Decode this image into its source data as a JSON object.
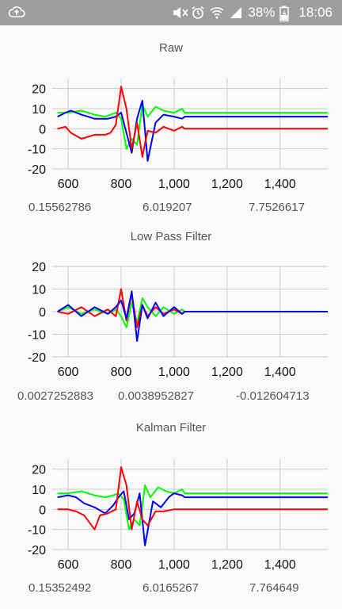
{
  "status_bar": {
    "left_icon": "cloud-upload-icon",
    "icons": [
      "mute-icon",
      "alarm-icon",
      "wifi-icon",
      "signal-icon"
    ],
    "battery_text": "38%",
    "battery_icon": "battery-charging-icon",
    "time": "18:06"
  },
  "colors": {
    "x_series": "#ff0000",
    "y_series": "#00ff00",
    "z_series": "#0000ff",
    "grid": "#cccccc",
    "background": "#fafafa"
  },
  "charts": [
    {
      "title": "Raw",
      "readouts": [
        "0.15562786",
        "6.019207",
        "7.7526617"
      ]
    },
    {
      "title": "Low Pass Filter",
      "readouts": [
        "0.0027252883",
        "0.0038952827",
        "-0.012604713"
      ]
    },
    {
      "title": "Kalman Filter",
      "readouts": [
        "0.15352492",
        "6.0165267",
        "7.764649"
      ]
    }
  ],
  "chart_data": [
    {
      "type": "line",
      "title": "Raw",
      "xlim": [
        540,
        1580
      ],
      "ylim": [
        -20,
        25
      ],
      "x_ticks": [
        "600",
        "800",
        "1,000",
        "1,200",
        "1,400"
      ],
      "y_ticks": [
        "20",
        "10",
        "0",
        "-10",
        "-20"
      ],
      "grid": true,
      "series": [
        {
          "color": "#00ff00",
          "x": [
            560,
            600,
            650,
            700,
            740,
            760,
            780,
            800,
            820,
            840,
            860,
            880,
            900,
            930,
            960,
            1000,
            1030,
            1040,
            1580
          ],
          "y": [
            8,
            8,
            9,
            7,
            6,
            7,
            8,
            5,
            -10,
            -5,
            -8,
            12,
            6,
            11,
            9,
            8,
            10,
            8,
            8
          ]
        },
        {
          "color": "#0000ff",
          "x": [
            560,
            590,
            610,
            650,
            700,
            750,
            780,
            800,
            820,
            840,
            860,
            880,
            900,
            930,
            960,
            1000,
            1030,
            1040,
            1580
          ],
          "y": [
            6,
            8,
            9,
            7,
            5,
            5,
            6,
            8,
            -2,
            -12,
            5,
            14,
            -16,
            3,
            7,
            6,
            5,
            6,
            6
          ]
        },
        {
          "color": "#ff0000",
          "x": [
            560,
            590,
            610,
            650,
            700,
            740,
            760,
            780,
            800,
            820,
            840,
            860,
            880,
            900,
            930,
            960,
            1000,
            1030,
            1040,
            1580
          ],
          "y": [
            0,
            1,
            -2,
            -5,
            -3,
            -3,
            -2,
            2,
            21,
            10,
            -10,
            3,
            -14,
            -1,
            -2,
            1,
            -1,
            1,
            0,
            0
          ]
        }
      ]
    },
    {
      "type": "line",
      "title": "Low Pass Filter",
      "xlim": [
        540,
        1580
      ],
      "ylim": [
        -20,
        20
      ],
      "x_ticks": [
        "600",
        "800",
        "1,000",
        "1,200",
        "1,400"
      ],
      "y_ticks": [
        "20",
        "10",
        "0",
        "-10",
        "-20"
      ],
      "grid": true,
      "series": [
        {
          "color": "#00ff00",
          "x": [
            560,
            600,
            650,
            700,
            750,
            780,
            800,
            820,
            840,
            860,
            880,
            900,
            930,
            960,
            1000,
            1030,
            1040,
            1580
          ],
          "y": [
            0,
            2,
            -1,
            1,
            -1,
            1,
            -2,
            -7,
            4,
            -5,
            6,
            2,
            -2,
            2,
            -1,
            1,
            0,
            0
          ]
        },
        {
          "color": "#ff0000",
          "x": [
            560,
            600,
            650,
            700,
            750,
            780,
            800,
            820,
            840,
            860,
            880,
            900,
            930,
            960,
            1000,
            1030,
            1040,
            1580
          ],
          "y": [
            0,
            -1,
            2,
            -2,
            1,
            -2,
            10,
            -4,
            8,
            -7,
            3,
            -2,
            2,
            -1,
            1,
            -1,
            0,
            0
          ]
        },
        {
          "color": "#0000ff",
          "x": [
            560,
            600,
            650,
            700,
            750,
            780,
            800,
            820,
            840,
            860,
            880,
            900,
            930,
            960,
            1000,
            1030,
            1040,
            1580
          ],
          "y": [
            0,
            3,
            -2,
            2,
            -1,
            2,
            5,
            -3,
            9,
            -13,
            3,
            -3,
            4,
            -2,
            2,
            -1,
            0,
            0
          ]
        }
      ]
    },
    {
      "type": "line",
      "title": "Kalman Filter",
      "xlim": [
        540,
        1580
      ],
      "ylim": [
        -20,
        25
      ],
      "x_ticks": [
        "600",
        "800",
        "1,000",
        "1,200",
        "1,400"
      ],
      "y_ticks": [
        "20",
        "10",
        "0",
        "-10",
        "-20"
      ],
      "grid": true,
      "series": [
        {
          "color": "#00ff00",
          "x": [
            560,
            600,
            650,
            700,
            740,
            770,
            790,
            810,
            830,
            850,
            870,
            890,
            910,
            940,
            970,
            1000,
            1030,
            1040,
            1580
          ],
          "y": [
            8,
            8,
            9,
            7,
            6,
            7,
            8,
            5,
            -10,
            -5,
            -8,
            12,
            6,
            11,
            9,
            8,
            10,
            8,
            8
          ]
        },
        {
          "color": "#0000ff",
          "x": [
            560,
            600,
            630,
            660,
            700,
            740,
            770,
            790,
            810,
            830,
            850,
            870,
            890,
            920,
            950,
            980,
            1000,
            1030,
            1040,
            1580
          ],
          "y": [
            6,
            7,
            6,
            3,
            1,
            -2,
            2,
            6,
            9,
            -5,
            -2,
            8,
            -18,
            4,
            1,
            6,
            8,
            7,
            6,
            6
          ]
        },
        {
          "color": "#ff0000",
          "x": [
            560,
            600,
            630,
            660,
            700,
            720,
            750,
            780,
            800,
            820,
            840,
            860,
            880,
            900,
            930,
            960,
            1000,
            1030,
            1040,
            1580
          ],
          "y": [
            0,
            0,
            -1,
            -3,
            -10,
            -3,
            -2,
            0,
            21,
            12,
            -10,
            4,
            -5,
            -8,
            -1,
            -1,
            0,
            0,
            0,
            0
          ]
        }
      ]
    }
  ]
}
